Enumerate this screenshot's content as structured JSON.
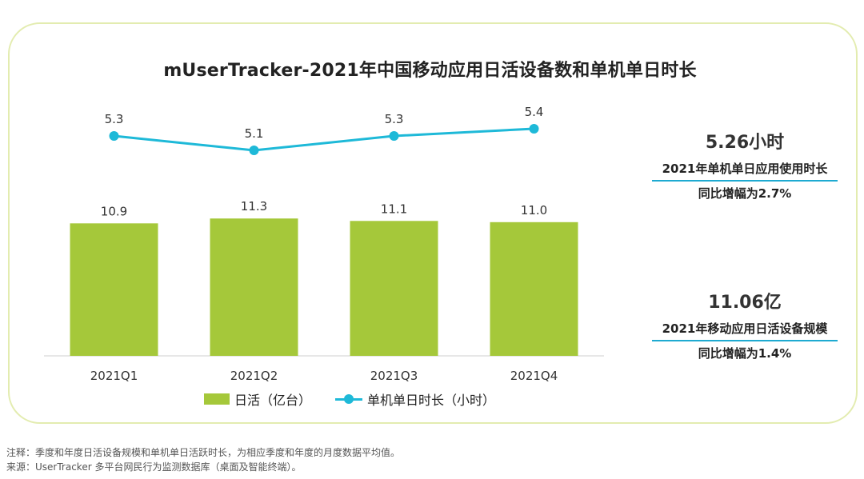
{
  "title": "mUserTracker-2021年中国移动应用日活设备数和单机单日时长",
  "colors": {
    "bar": "#a5c83a",
    "line": "#1eb9d8",
    "card_border": "#e3ecb0",
    "underline": "#1eaad1"
  },
  "chart_data": {
    "type": "bar+line",
    "categories": [
      "2021Q1",
      "2021Q2",
      "2021Q3",
      "2021Q4"
    ],
    "series": [
      {
        "name": "日活（亿台）",
        "type": "bar",
        "values": [
          10.9,
          11.3,
          11.1,
          11.0
        ],
        "labels": [
          "10.9",
          "11.3",
          "11.1",
          "11.0"
        ]
      },
      {
        "name": "单机单日时长（小时）",
        "type": "line",
        "values": [
          5.3,
          5.1,
          5.3,
          5.4
        ],
        "labels": [
          "5.3",
          "5.1",
          "5.3",
          "5.4"
        ]
      }
    ],
    "legend_position": "bottom"
  },
  "legend": {
    "bar_label": "日活（亿台）",
    "line_label": "单机单日时长（小时）"
  },
  "stats": [
    {
      "value": "5.26小时",
      "desc": "2021年单机单日应用使用时长",
      "yoy": "同比增幅为2.7%"
    },
    {
      "value": "11.06亿",
      "desc": "2021年移动应用日活设备规模",
      "yoy": "同比增幅为1.4%"
    }
  ],
  "footnotes": {
    "note": "注释：季度和年度日活设备规模和单机单日活跃时长，为相应季度和年度的月度数据平均值。",
    "source": "来源：UserTracker 多平台网民行为监测数据库（桌面及智能终端）。"
  }
}
